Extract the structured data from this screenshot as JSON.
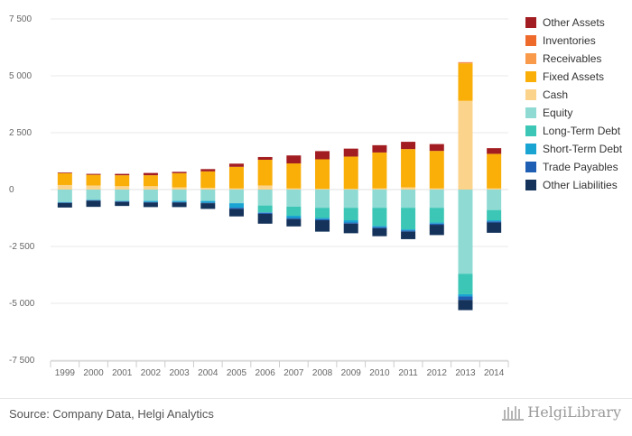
{
  "source": "Source: Company Data, Helgi Analytics",
  "logo_text": "HelgiLibrary",
  "chart_data": {
    "type": "bar",
    "stacked": true,
    "categories": [
      "1999",
      "2000",
      "2001",
      "2002",
      "2003",
      "2004",
      "2005",
      "2006",
      "2007",
      "2008",
      "2009",
      "2010",
      "2011",
      "2012",
      "2013",
      "2014"
    ],
    "ylim": [
      -7500,
      7500
    ],
    "yticks": [
      7500,
      5000,
      2500,
      0,
      -2500,
      -5000,
      -7500
    ],
    "ytick_labels": [
      "7 500",
      "5 000",
      "2 500",
      "0",
      "-2 500",
      "-5 000",
      "-7 500"
    ],
    "legend_position": "right",
    "grid": true,
    "asset_series": [
      {
        "name": "Cash",
        "color": "#fcd38a",
        "values": [
          200,
          180,
          150,
          150,
          100,
          80,
          50,
          180,
          50,
          30,
          30,
          50,
          100,
          50,
          3900,
          50
        ]
      },
      {
        "name": "Fixed Assets",
        "color": "#f9ae08",
        "values": [
          520,
          470,
          480,
          480,
          620,
          720,
          950,
          1130,
          1100,
          1300,
          1420,
          1580,
          1680,
          1650,
          1650,
          1520
        ]
      },
      {
        "name": "Receivables",
        "color": "#f99a4a",
        "values": [
          0,
          0,
          0,
          0,
          0,
          0,
          0,
          0,
          0,
          0,
          0,
          0,
          0,
          0,
          30,
          0
        ]
      },
      {
        "name": "Inventories",
        "color": "#ee6a2b",
        "values": [
          0,
          0,
          0,
          0,
          0,
          0,
          0,
          0,
          0,
          0,
          0,
          0,
          0,
          0,
          20,
          0
        ]
      },
      {
        "name": "Other Assets",
        "color": "#a21d21",
        "values": [
          30,
          40,
          60,
          100,
          60,
          100,
          140,
          120,
          350,
          360,
          350,
          320,
          320,
          300,
          0,
          250
        ]
      }
    ],
    "liability_series": [
      {
        "name": "Equity",
        "color": "#8fdbd4",
        "values": [
          550,
          450,
          500,
          500,
          500,
          500,
          600,
          700,
          750,
          800,
          800,
          800,
          800,
          800,
          3700,
          900
        ]
      },
      {
        "name": "Long-Term Debt",
        "color": "#3cc6b5",
        "values": [
          0,
          0,
          0,
          0,
          0,
          0,
          0,
          300,
          400,
          450,
          550,
          800,
          950,
          650,
          900,
          450
        ]
      },
      {
        "name": "Short-Term Debt",
        "color": "#1aa4d2",
        "values": [
          20,
          20,
          20,
          50,
          50,
          80,
          200,
          20,
          100,
          50,
          100,
          50,
          50,
          50,
          100,
          50
        ]
      },
      {
        "name": "Trade Payables",
        "color": "#1e5fb4",
        "values": [
          20,
          20,
          20,
          20,
          20,
          20,
          50,
          50,
          50,
          50,
          50,
          50,
          50,
          50,
          150,
          50
        ]
      },
      {
        "name": "Other Liabilities",
        "color": "#14325a",
        "values": [
          200,
          270,
          180,
          200,
          200,
          250,
          330,
          430,
          320,
          500,
          420,
          350,
          330,
          450,
          450,
          450
        ]
      }
    ],
    "legend": [
      {
        "name": "Other Assets",
        "color": "#a21d21"
      },
      {
        "name": "Inventories",
        "color": "#ee6a2b"
      },
      {
        "name": "Receivables",
        "color": "#f99a4a"
      },
      {
        "name": "Fixed Assets",
        "color": "#f9ae08"
      },
      {
        "name": "Cash",
        "color": "#fcd38a"
      },
      {
        "name": "Equity",
        "color": "#8fdbd4"
      },
      {
        "name": "Long-Term Debt",
        "color": "#3cc6b5"
      },
      {
        "name": "Short-Term Debt",
        "color": "#1aa4d2"
      },
      {
        "name": "Trade Payables",
        "color": "#1e5fb4"
      },
      {
        "name": "Other Liabilities",
        "color": "#14325a"
      }
    ]
  }
}
